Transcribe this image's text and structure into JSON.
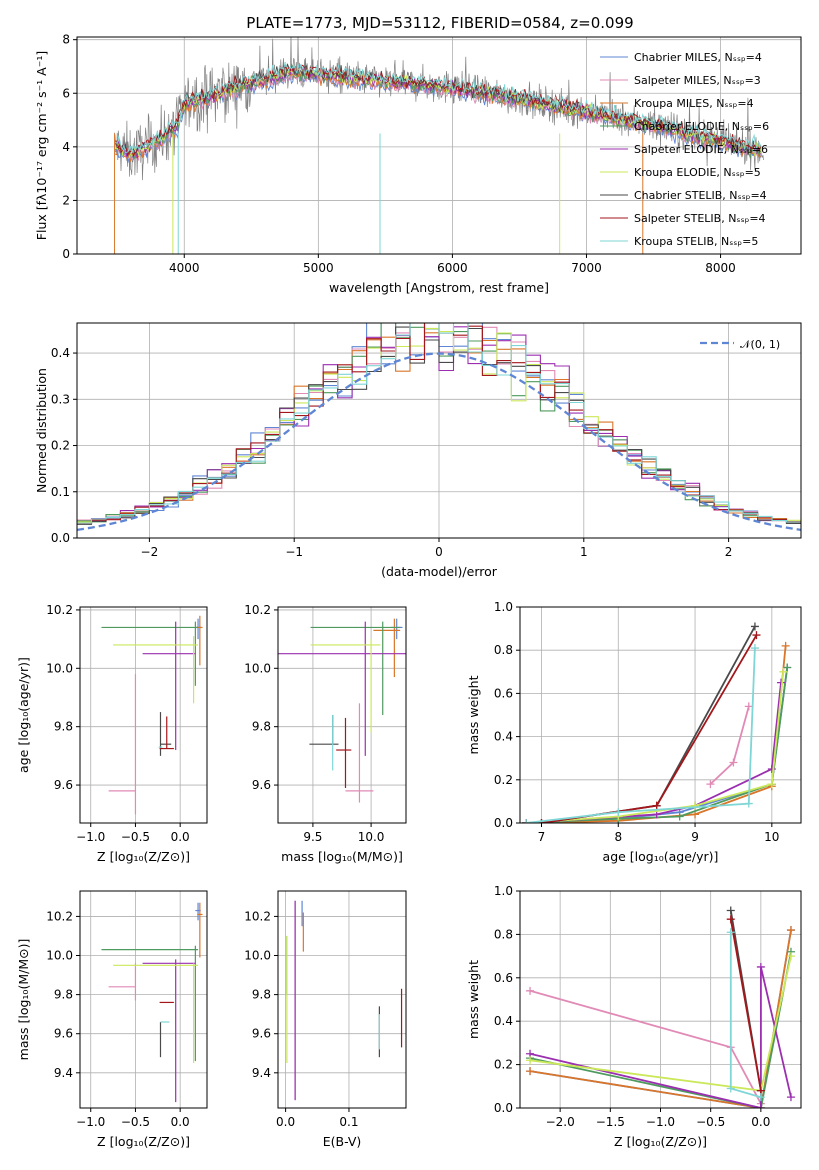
{
  "title": "PLATE=1773, MJD=53112, FIBERID=0584, z=0.099",
  "colors": {
    "Chabrier MILES": "#5f86d4",
    "Salpeter MILES": "#e18ab6",
    "Kroupa MILES": "#d9762a",
    "Chabrier ELODIE": "#4f9a5e",
    "Salpeter ELODIE": "#9b2fb0",
    "Kroupa ELODIE": "#cbe85a",
    "Chabrier STELIB": "#4a4a4a",
    "Salpeter STELIB": "#a3171c",
    "Kroupa STELIB": "#7fd6d6",
    "data": "#808080",
    "normal": "#5f86d4"
  },
  "chart_data": [
    {
      "type": "line",
      "xlabel": "wavelength [Angstrom, rest frame]",
      "ylabel": "Flux [fλ10⁻¹⁷ erg cm⁻² s⁻¹ A⁻¹]",
      "xlim": [
        3200,
        8600
      ],
      "ylim": [
        0,
        8.1
      ],
      "xticks": [
        "4000",
        "5000",
        "6000",
        "7000",
        "8000"
      ],
      "yticks": [
        "0",
        "2",
        "4",
        "6",
        "8"
      ],
      "legend": [
        "Chabrier MILES, Nₛₛₚ=4",
        "Salpeter MILES, Nₛₛₚ=3",
        "Kroupa MILES, Nₛₛₚ=4",
        "Chabrier ELODIE, Nₛₛₚ=6",
        "Salpeter ELODIE, Nₛₛₚ=6",
        "Kroupa ELODIE, Nₛₛₚ=5",
        "Chabrier STELIB, Nₛₛₚ=4",
        "Salpeter STELIB, Nₛₛₚ=4",
        "Kroupa STELIB, Nₛₛₚ=5"
      ],
      "legend_position": "right",
      "continuum": {
        "x": [
          3500,
          3600,
          3800,
          3950,
          4000,
          4200,
          4500,
          4800,
          5000,
          5200,
          5500,
          6000,
          6500,
          7000,
          7500,
          8000,
          8300
        ],
        "y": [
          4.0,
          3.7,
          4.2,
          4.8,
          5.6,
          5.9,
          6.4,
          6.8,
          6.7,
          6.6,
          6.45,
          6.2,
          5.8,
          5.3,
          4.8,
          4.2,
          3.85
        ]
      }
    },
    {
      "type": "step",
      "xlabel": "(data-model)/error",
      "ylabel": "Normed distribution",
      "xlim": [
        -2.5,
        2.5
      ],
      "ylim": [
        0,
        0.465
      ],
      "xticks": [
        "−2",
        "−1",
        "0",
        "1",
        "2"
      ],
      "yticks": [
        "0.0",
        "0.1",
        "0.2",
        "0.3",
        "0.4"
      ],
      "legend": [
        "𝒩(0, 1)"
      ],
      "legend_position": "top-right"
    },
    {
      "type": "errorbar",
      "xlabel": "Z [log₁₀(Z/Z⊙)]",
      "ylabel": "age  [log₁₀(age/yr)]",
      "xlim": [
        -1.12,
        0.3
      ],
      "ylim": [
        9.47,
        10.21
      ],
      "xticks": [
        "−1.0",
        "−0.5",
        "0.0"
      ],
      "yticks": [
        "9.6",
        "9.8",
        "10.0",
        "10.2"
      ],
      "points": [
        {
          "model": "Chabrier MILES",
          "x": 0.2,
          "xerr": [
            0.03,
            0.03
          ],
          "y": 10.14,
          "yerr": [
            0.04,
            0.03
          ]
        },
        {
          "model": "Salpeter MILES",
          "x": -0.5,
          "xerr": [
            0.3,
            0.0
          ],
          "y": 9.58,
          "yerr": [
            0.08,
            0.4
          ]
        },
        {
          "model": "Kroupa MILES",
          "x": 0.22,
          "xerr": [
            0.03,
            0.03
          ],
          "y": 10.14,
          "yerr": [
            0.13,
            0.04
          ]
        },
        {
          "model": "Chabrier ELODIE",
          "x": 0.17,
          "xerr": [
            1.05,
            0.03
          ],
          "y": 10.14,
          "yerr": [
            0.2,
            0.02
          ]
        },
        {
          "model": "Salpeter ELODIE",
          "x": -0.05,
          "xerr": [
            0.37,
            0.22
          ],
          "y": 10.05,
          "yerr": [
            0.33,
            0.11
          ]
        },
        {
          "model": "Kroupa ELODIE",
          "x": 0.15,
          "xerr": [
            0.9,
            0.05
          ],
          "y": 10.08,
          "yerr": [
            0.2,
            0.03
          ]
        },
        {
          "model": "Chabrier STELIB",
          "x": -0.22,
          "xerr": [
            0.0,
            0.12
          ],
          "y": 9.74,
          "yerr": [
            0.04,
            0.11
          ]
        },
        {
          "model": "Salpeter STELIB",
          "x": -0.15,
          "xerr": [
            0.08,
            0.08
          ],
          "y": 9.725,
          "yerr": [
            0.0,
            0.11
          ]
        },
        {
          "model": "Kroupa STELIB",
          "x": -0.22,
          "xerr": [
            0.02,
            0.02
          ],
          "y": 9.73,
          "yerr": [
            0.0,
            0.0
          ]
        }
      ]
    },
    {
      "type": "errorbar",
      "xlabel": "mass [log₁₀(M/M⊙)]",
      "ylabel": "",
      "xlim": [
        9.2,
        10.3
      ],
      "ylim": [
        9.47,
        10.21
      ],
      "xticks": [
        "9.5",
        "10.0"
      ],
      "yticks": [
        "9.6",
        "9.8",
        "10.0",
        "10.2"
      ],
      "points": [
        {
          "model": "Chabrier MILES",
          "x": 10.22,
          "xerr": [
            0.05,
            0.05
          ],
          "y": 10.14,
          "yerr": [
            0.04,
            0.03
          ]
        },
        {
          "model": "Salpeter MILES",
          "x": 9.9,
          "xerr": [
            0.12,
            0.12
          ],
          "y": 9.58,
          "yerr": [
            0.04,
            0.3
          ]
        },
        {
          "model": "Kroupa MILES",
          "x": 10.2,
          "xerr": [
            0.18,
            0.05
          ],
          "y": 10.13,
          "yerr": [
            0.16,
            0.04
          ]
        },
        {
          "model": "Chabrier ELODIE",
          "x": 10.1,
          "xerr": [
            0.62,
            0.15
          ],
          "y": 10.14,
          "yerr": [
            0.3,
            0.02
          ]
        },
        {
          "model": "Salpeter ELODIE",
          "x": 9.95,
          "xerr": [
            0.75,
            0.35
          ],
          "y": 10.05,
          "yerr": [
            0.35,
            0.11
          ]
        },
        {
          "model": "Kroupa ELODIE",
          "x": 10.0,
          "xerr": [
            0.52,
            0.08
          ],
          "y": 10.08,
          "yerr": [
            0.3,
            0.02
          ]
        },
        {
          "model": "Chabrier STELIB",
          "x": 9.67,
          "xerr": [
            0.2,
            0.05
          ],
          "y": 9.74,
          "yerr": [
            0.0,
            0.1
          ]
        },
        {
          "model": "Salpeter STELIB",
          "x": 9.78,
          "xerr": [
            0.08,
            0.05
          ],
          "y": 9.72,
          "yerr": [
            0.13,
            0.11
          ]
        },
        {
          "model": "Kroupa STELIB",
          "x": 9.67,
          "xerr": [
            0.0,
            0.0
          ],
          "y": 9.73,
          "yerr": [
            0.08,
            0.11
          ]
        }
      ]
    },
    {
      "type": "line",
      "xlabel": "age  [log₁₀(age/yr)]",
      "ylabel": "mass weight",
      "xlim": [
        6.72,
        10.38
      ],
      "ylim": [
        0,
        1.0
      ],
      "xticks": [
        "7",
        "8",
        "9",
        "10"
      ],
      "yticks": [
        "0.0",
        "0.2",
        "0.4",
        "0.6",
        "0.8",
        "1.0"
      ],
      "grid": true,
      "series": [
        {
          "model": "Chabrier MILES",
          "x": [
            6.8,
            8.0,
            8.8,
            10.0,
            10.2
          ],
          "y": [
            0.0,
            0.02,
            0.05,
            0.18,
            0.72
          ]
        },
        {
          "model": "Salpeter MILES",
          "x": [
            9.2,
            9.5,
            9.7
          ],
          "y": [
            0.18,
            0.28,
            0.54
          ]
        },
        {
          "model": "Kroupa MILES",
          "x": [
            6.8,
            8.0,
            9.0,
            10.0,
            10.18
          ],
          "y": [
            0.0,
            0.01,
            0.04,
            0.17,
            0.82
          ]
        },
        {
          "model": "Chabrier ELODIE",
          "x": [
            6.8,
            8.0,
            8.8,
            10.0,
            10.2
          ],
          "y": [
            0.0,
            0.02,
            0.03,
            0.18,
            0.72
          ]
        },
        {
          "model": "Salpeter ELODIE",
          "x": [
            6.8,
            8.5,
            9.0,
            10.0,
            10.12
          ],
          "y": [
            0.0,
            0.04,
            0.08,
            0.25,
            0.65
          ]
        },
        {
          "model": "Kroupa ELODIE",
          "x": [
            6.8,
            8.0,
            9.0,
            10.0,
            10.15
          ],
          "y": [
            0.0,
            0.03,
            0.08,
            0.18,
            0.7
          ]
        },
        {
          "model": "Chabrier STELIB",
          "x": [
            6.8,
            7.0,
            8.5,
            9.78
          ],
          "y": [
            0.0,
            0.0,
            0.08,
            0.91
          ]
        },
        {
          "model": "Salpeter STELIB",
          "x": [
            6.8,
            7.0,
            8.5,
            9.8
          ],
          "y": [
            0.0,
            0.0,
            0.08,
            0.87
          ]
        },
        {
          "model": "Kroupa STELIB",
          "x": [
            6.8,
            8.0,
            9.7,
            9.78
          ],
          "y": [
            0.0,
            0.05,
            0.09,
            0.81
          ]
        }
      ]
    },
    {
      "type": "errorbar",
      "xlabel": "Z [log₁₀(Z/Z⊙)]",
      "ylabel": "mass [log₁₀(M/M⊙)]",
      "xlim": [
        -1.12,
        0.3
      ],
      "ylim": [
        9.22,
        10.33
      ],
      "xticks": [
        "−1.0",
        "−0.5",
        "0.0"
      ],
      "yticks": [
        "9.4",
        "9.6",
        "9.8",
        "10.0",
        "10.2"
      ],
      "points": [
        {
          "model": "Chabrier MILES",
          "x": 0.2,
          "xerr": [
            0.03,
            0.03
          ],
          "y": 10.23,
          "yerr": [
            0.05,
            0.04
          ]
        },
        {
          "model": "Salpeter MILES",
          "x": -0.5,
          "xerr": [
            0.3,
            0.0
          ],
          "y": 9.84,
          "yerr": [
            0.07,
            0.12
          ]
        },
        {
          "model": "Kroupa MILES",
          "x": 0.22,
          "xerr": [
            0.03,
            0.03
          ],
          "y": 10.21,
          "yerr": [
            0.22,
            0.06
          ]
        },
        {
          "model": "Chabrier ELODIE",
          "x": 0.17,
          "xerr": [
            1.05,
            0.03
          ],
          "y": 10.03,
          "yerr": [
            0.57,
            0.02
          ]
        },
        {
          "model": "Salpeter ELODIE",
          "x": -0.05,
          "xerr": [
            0.37,
            0.22
          ],
          "y": 9.96,
          "yerr": [
            0.71,
            0.02
          ]
        },
        {
          "model": "Kroupa ELODIE",
          "x": 0.15,
          "xerr": [
            0.9,
            0.05
          ],
          "y": 9.95,
          "yerr": [
            0.5,
            0.01
          ]
        },
        {
          "model": "Chabrier STELIB",
          "x": -0.22,
          "xerr": [
            0.0,
            0.0
          ],
          "y": 9.66,
          "yerr": [
            0.18,
            0.0
          ]
        },
        {
          "model": "Salpeter STELIB",
          "x": -0.15,
          "xerr": [
            0.08,
            0.08
          ],
          "y": 9.76,
          "yerr": [
            0.0,
            0.0
          ]
        },
        {
          "model": "Kroupa STELIB",
          "x": -0.22,
          "xerr": [
            0.0,
            0.1
          ],
          "y": 9.66,
          "yerr": [
            0.0,
            0.0
          ]
        }
      ]
    },
    {
      "type": "errorbar",
      "xlabel": "E(B-V)",
      "ylabel": "",
      "xlim": [
        -0.012,
        0.19
      ],
      "ylim": [
        9.22,
        10.33
      ],
      "xticks": [
        "0.0",
        "0.1"
      ],
      "yticks": [
        "9.4",
        "9.6",
        "9.8",
        "10.0",
        "10.2"
      ],
      "points": [
        {
          "model": "Chabrier MILES",
          "x": 0.026,
          "xerr": [
            0,
            0
          ],
          "y": 10.2,
          "yerr": [
            0.05,
            0.08
          ]
        },
        {
          "model": "Salpeter MILES",
          "x": 0.015,
          "xerr": [
            0,
            0
          ],
          "y": 9.84,
          "yerr": [
            0.58,
            0.44
          ]
        },
        {
          "model": "Kroupa MILES",
          "x": 0.028,
          "xerr": [
            0,
            0
          ],
          "y": 10.12,
          "yerr": [
            0.1,
            0.1
          ]
        },
        {
          "model": "Chabrier ELODIE",
          "x": 0.002,
          "xerr": [
            0,
            0
          ],
          "y": 9.9,
          "yerr": [
            0.1,
            0.2
          ]
        },
        {
          "model": "Salpeter ELODIE",
          "x": 0.015,
          "xerr": [
            0,
            0
          ],
          "y": 9.84,
          "yerr": [
            0.58,
            0.44
          ]
        },
        {
          "model": "Kroupa ELODIE",
          "x": 0.002,
          "xerr": [
            0,
            0
          ],
          "y": 9.8,
          "yerr": [
            0.35,
            0.3
          ]
        },
        {
          "model": "Chabrier STELIB",
          "x": 0.148,
          "xerr": [
            0,
            0
          ],
          "y": 9.6,
          "yerr": [
            0.12,
            0.14
          ]
        },
        {
          "model": "Salpeter STELIB",
          "x": 0.183,
          "xerr": [
            0,
            0
          ],
          "y": 9.68,
          "yerr": [
            0.15,
            0.15
          ]
        },
        {
          "model": "Kroupa STELIB",
          "x": 0.148,
          "xerr": [
            0,
            0
          ],
          "y": 9.6,
          "yerr": [
            0.08,
            0.1
          ]
        }
      ]
    },
    {
      "type": "line",
      "xlabel": "Z [log₁₀(Z/Z⊙)]",
      "ylabel": "mass weight",
      "xlim": [
        -2.4,
        0.4
      ],
      "ylim": [
        0,
        1.0
      ],
      "xticks": [
        "−2.0",
        "−1.5",
        "−1.0",
        "−0.5",
        "0.0"
      ],
      "yticks": [
        "0.0",
        "0.2",
        "0.4",
        "0.6",
        "0.8",
        "1.0"
      ],
      "grid": true,
      "series": [
        {
          "model": "Chabrier MILES",
          "x": [
            -2.3,
            0.0,
            0.3
          ],
          "y": [
            0.17,
            0.0,
            0.82
          ]
        },
        {
          "model": "Salpeter MILES",
          "x": [
            -2.3,
            -0.3,
            0.0
          ],
          "y": [
            0.54,
            0.28,
            0.02
          ]
        },
        {
          "model": "Kroupa MILES",
          "x": [
            -2.3,
            0.0,
            0.3
          ],
          "y": [
            0.17,
            0.0,
            0.82
          ]
        },
        {
          "model": "Chabrier ELODIE",
          "x": [
            -2.3,
            0.0,
            0.3
          ],
          "y": [
            0.23,
            0.0,
            0.72
          ]
        },
        {
          "model": "Salpeter ELODIE",
          "x": [
            -2.3,
            0.0,
            0.0,
            0.3
          ],
          "y": [
            0.25,
            0.0,
            0.65,
            0.05
          ]
        },
        {
          "model": "Kroupa ELODIE",
          "x": [
            -2.3,
            0.0,
            0.3
          ],
          "y": [
            0.22,
            0.08,
            0.7
          ]
        },
        {
          "model": "Chabrier STELIB",
          "x": [
            -0.3,
            0.0
          ],
          "y": [
            0.91,
            0.08
          ]
        },
        {
          "model": "Salpeter STELIB",
          "x": [
            -0.3,
            0.0
          ],
          "y": [
            0.87,
            0.08
          ]
        },
        {
          "model": "Kroupa STELIB",
          "x": [
            -0.3,
            -0.3,
            0.0
          ],
          "y": [
            0.81,
            0.09,
            0.05
          ]
        }
      ]
    }
  ]
}
